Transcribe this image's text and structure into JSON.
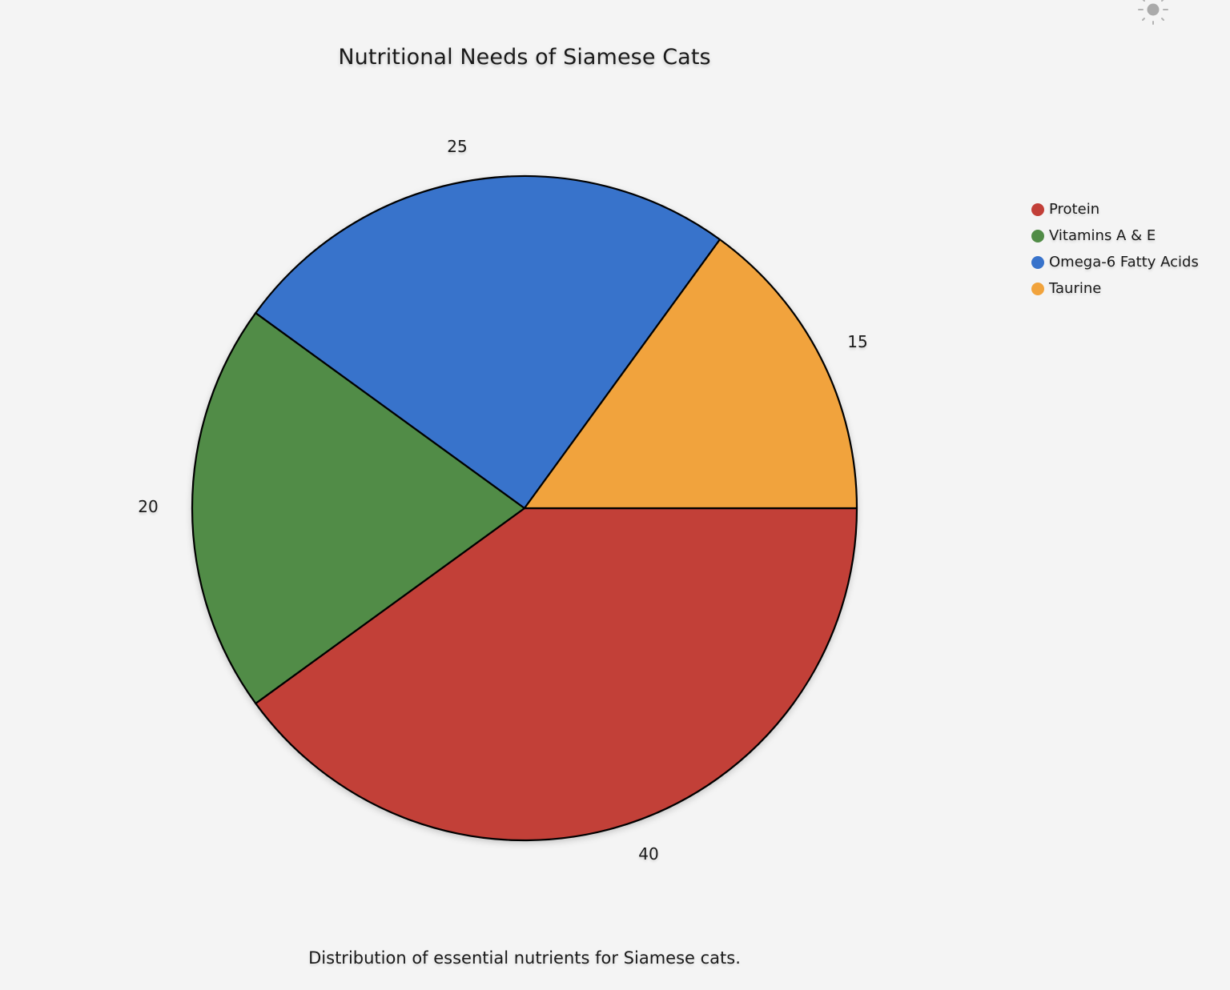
{
  "header": {
    "title": "Nutritional Needs of Siamese Cats",
    "theme_toggle_icon": "sun-icon"
  },
  "caption": "Distribution of essential nutrients for Siamese cats.",
  "colors": {
    "background": "#f4f4f4",
    "protein": "#c23f38",
    "vitamins": "#518c47",
    "omega6": "#3873cb",
    "taurine": "#f1a33c",
    "stroke": "#000000"
  },
  "legend": {
    "items": [
      {
        "label": "Protein",
        "color": "#c23f38"
      },
      {
        "label": "Vitamins A & E",
        "color": "#518c47"
      },
      {
        "label": "Omega-6 Fatty Acids",
        "color": "#3873cb"
      },
      {
        "label": "Taurine",
        "color": "#f1a33c"
      }
    ]
  },
  "labels": {
    "protein": "40",
    "vitamins": "20",
    "omega6": "25",
    "taurine": "15"
  },
  "chart_data": {
    "type": "pie",
    "title": "Nutritional Needs of Siamese Cats",
    "subtitle": "Distribution of essential nutrients for Siamese cats.",
    "categories": [
      "Protein",
      "Vitamins A & E",
      "Omega-6 Fatty Acids",
      "Taurine"
    ],
    "values": [
      40,
      20,
      25,
      15
    ],
    "colors": [
      "#c23f38",
      "#518c47",
      "#3873cb",
      "#f1a33c"
    ],
    "start_angle": "east (3 o'clock), clockwise",
    "data_labels": [
      "40",
      "20",
      "25",
      "15"
    ],
    "legend_position": "right"
  }
}
